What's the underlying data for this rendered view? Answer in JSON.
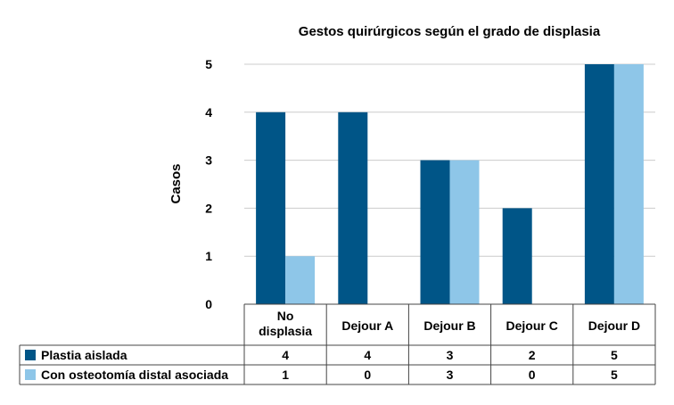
{
  "chart_data": {
    "type": "bar",
    "title": "Gestos quirúrgicos según el grado de displasia",
    "xlabel": "",
    "ylabel": "Casos",
    "ylim": [
      0,
      5
    ],
    "yticks": [
      0,
      1,
      2,
      3,
      4,
      5
    ],
    "grid": true,
    "legend": "bottom-left (data table)",
    "categories": [
      [
        "No",
        "displasia"
      ],
      [
        "Dejour A"
      ],
      [
        "Dejour B"
      ],
      [
        "Dejour C"
      ],
      [
        "Dejour D"
      ]
    ],
    "series": [
      {
        "name": "Plastia aislada",
        "color": "#005587",
        "values": [
          4,
          4,
          3,
          2,
          5
        ]
      },
      {
        "name": "Con osteotomía distal asociada",
        "color": "#8ec6e8",
        "values": [
          1,
          0,
          3,
          0,
          5
        ]
      }
    ],
    "table_values": [
      [
        "4",
        "4",
        "3",
        "2",
        "5"
      ],
      [
        "1",
        "0",
        "3",
        "0",
        "5"
      ]
    ]
  }
}
